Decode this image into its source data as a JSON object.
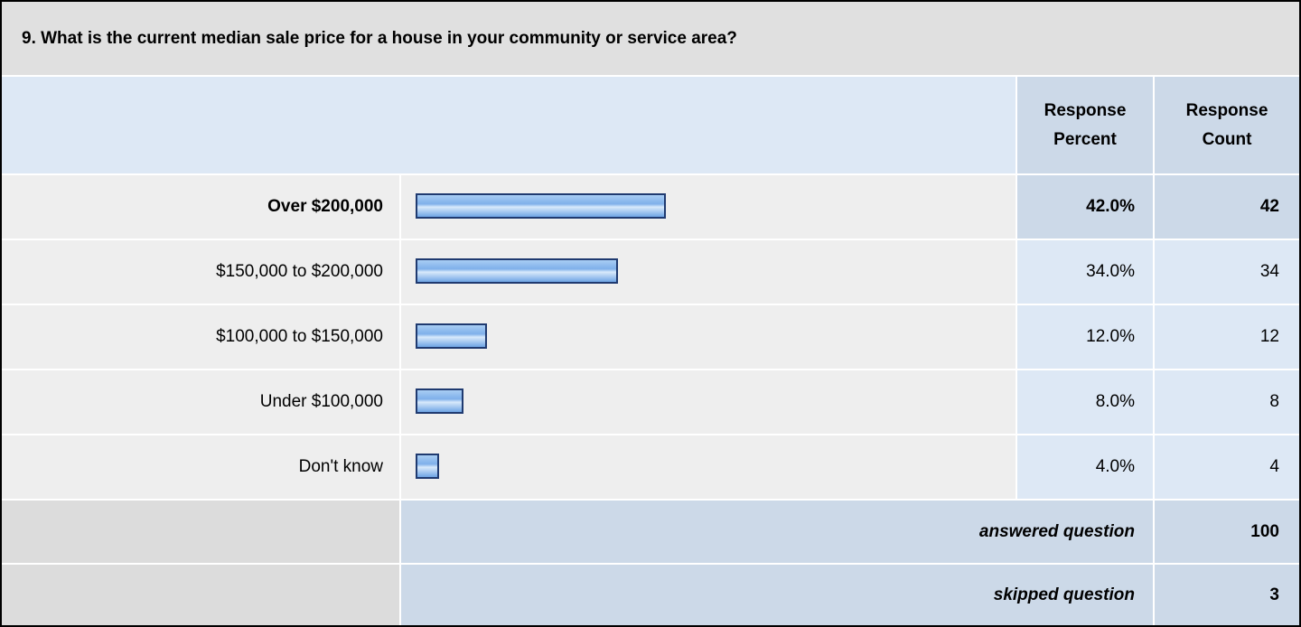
{
  "question": "9. What is the current median sale price for a house in your community or service area?",
  "headers": [
    "Response Percent",
    "Response Count"
  ],
  "rows": [
    {
      "label": "Over $200,000",
      "percent": 42,
      "percent_label": "42.0%",
      "count": 42
    },
    {
      "label": "$150,000 to $200,000",
      "percent": 34,
      "percent_label": "34.0%",
      "count": 34
    },
    {
      "label": "$100,000 to $150,000",
      "percent": 12,
      "percent_label": "12.0%",
      "count": 12
    },
    {
      "label": "Under $100,000",
      "percent": 8,
      "percent_label": "8.0%",
      "count": 8
    },
    {
      "label": "Don't know",
      "percent": 4,
      "percent_label": "4.0%",
      "count": 4
    }
  ],
  "footer": [
    {
      "label": "answered question",
      "count": 100
    },
    {
      "label": "skipped question",
      "count": 3
    }
  ]
}
